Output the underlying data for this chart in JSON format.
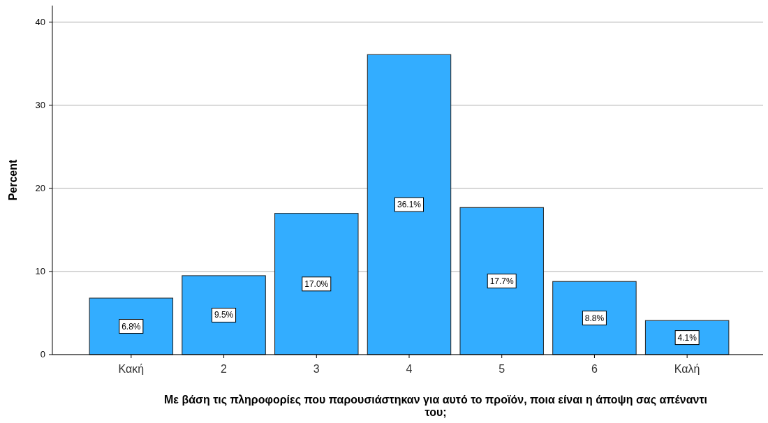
{
  "chart_data": {
    "type": "bar",
    "categories": [
      "Κακή",
      "2",
      "3",
      "4",
      "5",
      "6",
      "Καλή"
    ],
    "values": [
      6.8,
      9.5,
      17.0,
      36.1,
      17.7,
      8.8,
      4.1
    ],
    "value_labels": [
      "6.8%",
      "9.5%",
      "17.0%",
      "36.1%",
      "17.7%",
      "8.8%",
      "4.1%"
    ],
    "color": "#33adff",
    "ylim": [
      0,
      42
    ],
    "yticks": [
      0,
      10,
      20,
      30,
      40
    ],
    "grid": "y",
    "xlabel": "Με βάση τις πληροφορίες που παρουσιάστηκαν για αυτό το προϊόν, ποια είναι η άποψη σας απέναντι του;",
    "ylabel": "Percent"
  }
}
